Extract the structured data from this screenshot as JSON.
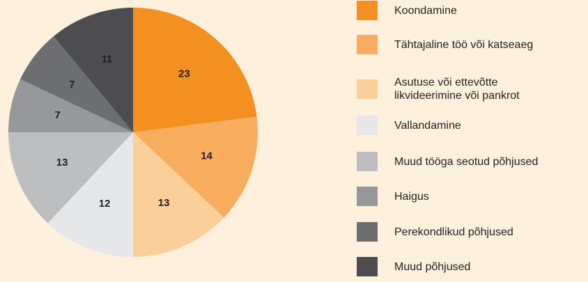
{
  "chart_data": {
    "type": "pie",
    "categories": [
      "Koondamine",
      "Tähtajaline töö või katseaeg",
      "Asutuse või ettevõtte likvideerimine või pankrot",
      "Vallandamine",
      "Muud tööga seotud põhjused",
      "Haigus",
      "Perekondlikud põhjused",
      "Muud põhjused"
    ],
    "values": [
      23,
      14,
      13,
      12,
      13,
      7,
      7,
      11
    ],
    "colors": [
      "#f39020",
      "#f8ad5e",
      "#fbcf9a",
      "#e6e7e9",
      "#bdbec0",
      "#97989a",
      "#6d6e70",
      "#4d4d4f"
    ],
    "legend": "right"
  }
}
